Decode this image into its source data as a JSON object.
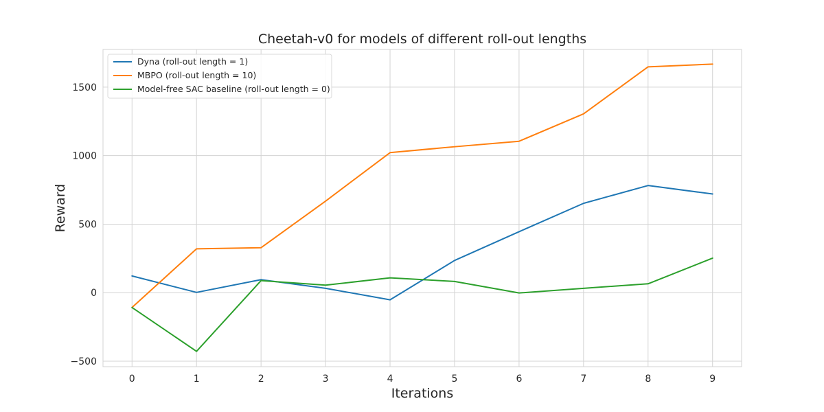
{
  "chart_data": {
    "type": "line",
    "title": "Cheetah-v0 for models of different roll-out lengths",
    "xlabel": "Iterations",
    "ylabel": "Reward",
    "x": [
      0,
      1,
      2,
      3,
      4,
      5,
      6,
      7,
      8,
      9
    ],
    "xlim": [
      -0.45,
      9.45
    ],
    "ylim": [
      -540,
      1775
    ],
    "xticks": [
      "0",
      "1",
      "2",
      "3",
      "4",
      "5",
      "6",
      "7",
      "8",
      "9"
    ],
    "yticks": [
      -500,
      0,
      500,
      1000,
      1500
    ],
    "ytick_labels": [
      "−500",
      "0",
      "500",
      "1000",
      "1500"
    ],
    "grid": true,
    "legend_position": "upper-left",
    "series": [
      {
        "name": "Dyna (roll-out length = 1)",
        "color": "#1f77b4",
        "values": [
          122,
          2,
          95,
          32,
          -52,
          235,
          445,
          652,
          782,
          720
        ]
      },
      {
        "name": "MBPO (roll-out length = 10)",
        "color": "#ff7f0e",
        "values": [
          -108,
          320,
          328,
          668,
          1022,
          1065,
          1105,
          1305,
          1648,
          1668
        ]
      },
      {
        "name": "Model-free SAC baseline (roll-out length = 0)",
        "color": "#2ca02c",
        "values": [
          -108,
          -428,
          88,
          55,
          108,
          82,
          -2,
          32,
          65,
          252
        ]
      }
    ]
  }
}
